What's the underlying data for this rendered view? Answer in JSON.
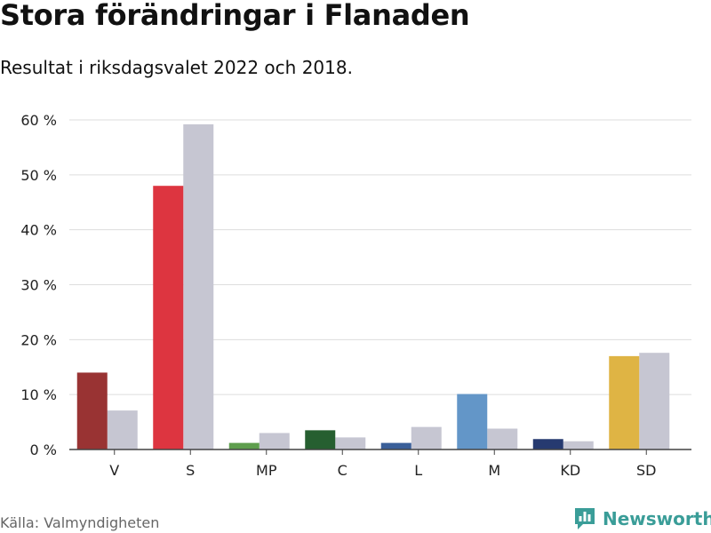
{
  "header": {
    "title": "Stora förändringar i Flanaden",
    "subtitle": "Resultat i riksdagsvalet 2022 och 2018."
  },
  "footer": {
    "source": "Källa: Valmyndigheten",
    "brand": "Newsworthy",
    "brand_icon": "bar-chart-logo-icon",
    "brand_color": "#3a9d98"
  },
  "chart_data": {
    "type": "bar",
    "title": "",
    "xlabel": "",
    "ylabel": "",
    "ylim": [
      0,
      60
    ],
    "yticks": [
      "0 %",
      "10 %",
      "20 %",
      "30 %",
      "40 %",
      "50 %",
      "60 %"
    ],
    "ytick_values": [
      0,
      10,
      20,
      30,
      40,
      50,
      60
    ],
    "grid": true,
    "legend": "none",
    "categories": [
      "V",
      "S",
      "MP",
      "C",
      "L",
      "M",
      "KD",
      "SD"
    ],
    "colors_2022": [
      "#993333",
      "#dd3540",
      "#5e9e4d",
      "#265f30",
      "#3a5f99",
      "#6396c8",
      "#263a70",
      "#dfb444"
    ],
    "color_2018": "#c6c6d2",
    "series": [
      {
        "values": [
          14.0,
          48.0,
          1.2,
          3.5,
          1.2,
          10.1,
          1.9,
          17.0
        ]
      },
      {
        "values": [
          7.1,
          59.2,
          3.0,
          2.2,
          4.1,
          3.8,
          1.5,
          17.6
        ]
      }
    ]
  }
}
